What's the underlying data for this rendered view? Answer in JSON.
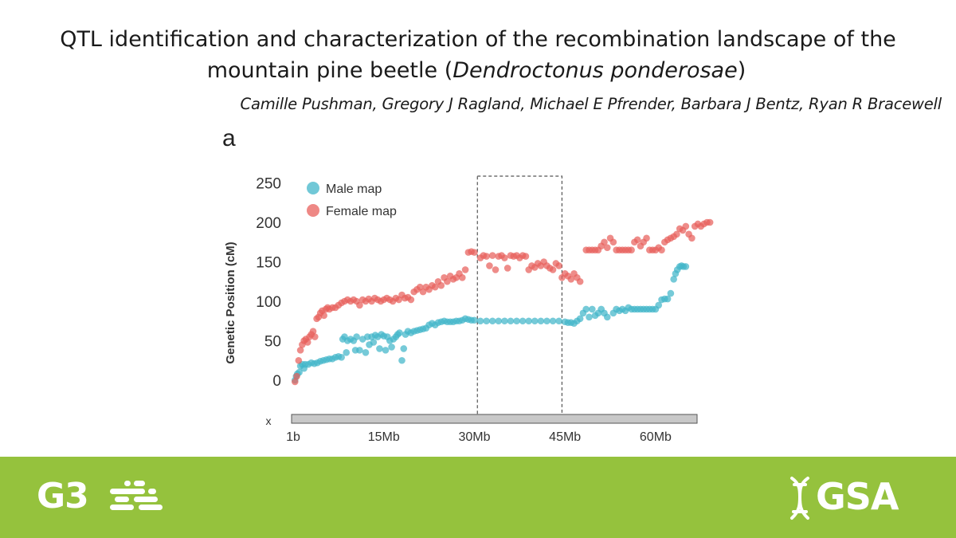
{
  "header": {
    "title_pre": "QTL identification and characterization of the recombination landscape of the",
    "title_line2_pre": "mountain pine beetle (",
    "title_italic": "Dendroctonus ponderosae",
    "title_line2_post": ")",
    "authors": "Camille Pushman, Gregory J Ragland, Michael E Pfrender, Barbara J Bentz, Ryan R Bracewell"
  },
  "footer": {
    "left_logo": "G3",
    "right_logo": "GSA",
    "icons": [
      "g3-dna-icon",
      "gsa-dna-icon"
    ],
    "color": "#95c23d"
  },
  "chart_data": {
    "type": "scatter",
    "panel_label": "a",
    "ylabel": "Genetic Position (cM)",
    "xlabel": "",
    "ylim": [
      -10,
      265
    ],
    "xlim": [
      0,
      67
    ],
    "yticks": [
      0,
      50,
      100,
      150,
      200,
      250
    ],
    "xticks": [
      {
        "v": 0,
        "label": "1b"
      },
      {
        "v": 15,
        "label": "15Mb"
      },
      {
        "v": 30,
        "label": "30Mb"
      },
      {
        "v": 45,
        "label": "45Mb"
      },
      {
        "v": 60,
        "label": "60Mb"
      }
    ],
    "chromosome_label": "x",
    "grid": false,
    "legend": "top-left",
    "highlight_region": [
      30.5,
      44.5
    ],
    "series": [
      {
        "name": "Male map",
        "color": "#41b6c9",
        "points": [
          [
            0.3,
            0
          ],
          [
            0.5,
            5
          ],
          [
            0.7,
            8
          ],
          [
            1,
            10
          ],
          [
            1.2,
            18
          ],
          [
            1.5,
            20
          ],
          [
            1.8,
            15
          ],
          [
            2,
            20
          ],
          [
            2.5,
            20
          ],
          [
            3,
            22
          ],
          [
            3.5,
            21
          ],
          [
            4,
            22
          ],
          [
            4.5,
            24
          ],
          [
            5,
            25
          ],
          [
            5.5,
            26
          ],
          [
            6,
            27
          ],
          [
            6.5,
            27
          ],
          [
            7,
            29
          ],
          [
            7.5,
            30
          ],
          [
            8,
            29
          ],
          [
            8.2,
            52
          ],
          [
            8.5,
            55
          ],
          [
            8.8,
            35
          ],
          [
            9,
            50
          ],
          [
            9.5,
            52
          ],
          [
            10,
            50
          ],
          [
            10.3,
            38
          ],
          [
            10.5,
            55
          ],
          [
            11,
            38
          ],
          [
            11.5,
            52
          ],
          [
            12,
            35
          ],
          [
            12.3,
            55
          ],
          [
            12.6,
            45
          ],
          [
            13,
            55
          ],
          [
            13.3,
            48
          ],
          [
            13.6,
            57
          ],
          [
            14,
            55
          ],
          [
            14.3,
            40
          ],
          [
            14.6,
            58
          ],
          [
            15,
            56
          ],
          [
            15.3,
            38
          ],
          [
            15.6,
            55
          ],
          [
            16,
            50
          ],
          [
            16.3,
            42
          ],
          [
            16.6,
            52
          ],
          [
            17,
            55
          ],
          [
            17.3,
            58
          ],
          [
            17.6,
            60
          ],
          [
            18,
            25
          ],
          [
            18.3,
            40
          ],
          [
            18.6,
            58
          ],
          [
            19,
            62
          ],
          [
            19.5,
            60
          ],
          [
            20,
            62
          ],
          [
            20.5,
            63
          ],
          [
            21,
            64
          ],
          [
            21.5,
            65
          ],
          [
            22,
            66
          ],
          [
            22.5,
            70
          ],
          [
            23,
            72
          ],
          [
            23.5,
            70
          ],
          [
            24,
            73
          ],
          [
            24.5,
            74
          ],
          [
            25,
            75
          ],
          [
            25.5,
            74
          ],
          [
            26,
            74
          ],
          [
            26.5,
            74
          ],
          [
            27,
            75
          ],
          [
            27.5,
            75
          ],
          [
            28,
            76
          ],
          [
            28.5,
            78
          ],
          [
            29,
            77
          ],
          [
            29.5,
            76
          ],
          [
            30,
            76
          ],
          [
            31,
            75
          ],
          [
            32,
            75
          ],
          [
            33,
            75
          ],
          [
            34,
            75
          ],
          [
            35,
            75
          ],
          [
            36,
            75
          ],
          [
            37,
            75
          ],
          [
            38,
            75
          ],
          [
            39,
            75
          ],
          [
            40,
            75
          ],
          [
            41,
            75
          ],
          [
            42,
            75
          ],
          [
            43,
            75
          ],
          [
            44,
            75
          ],
          [
            45,
            74
          ],
          [
            45.5,
            73
          ],
          [
            46,
            73
          ],
          [
            46.5,
            72
          ],
          [
            47,
            75
          ],
          [
            47.5,
            78
          ],
          [
            48,
            85
          ],
          [
            48.5,
            90
          ],
          [
            49,
            80
          ],
          [
            49.5,
            90
          ],
          [
            50,
            82
          ],
          [
            50.5,
            85
          ],
          [
            51,
            90
          ],
          [
            51.5,
            85
          ],
          [
            52,
            80
          ],
          [
            53,
            85
          ],
          [
            53.5,
            90
          ],
          [
            54,
            88
          ],
          [
            54.5,
            90
          ],
          [
            55,
            88
          ],
          [
            55.5,
            92
          ],
          [
            56,
            90
          ],
          [
            56.5,
            90
          ],
          [
            57,
            90
          ],
          [
            57.5,
            90
          ],
          [
            58,
            90
          ],
          [
            58.5,
            90
          ],
          [
            59,
            90
          ],
          [
            59.5,
            90
          ],
          [
            60,
            90
          ],
          [
            60.5,
            95
          ],
          [
            61,
            102
          ],
          [
            61.5,
            103
          ],
          [
            62,
            103
          ],
          [
            62.5,
            110
          ],
          [
            63,
            128
          ],
          [
            63.3,
            135
          ],
          [
            63.6,
            140
          ],
          [
            64,
            144
          ],
          [
            64.3,
            145
          ],
          [
            64.6,
            144
          ],
          [
            65,
            144
          ]
        ]
      },
      {
        "name": "Female map",
        "color": "#e8605c",
        "points": [
          [
            0.3,
            -2
          ],
          [
            0.6,
            5
          ],
          [
            0.9,
            25
          ],
          [
            1.2,
            38
          ],
          [
            1.5,
            45
          ],
          [
            1.8,
            50
          ],
          [
            2.1,
            52
          ],
          [
            2.4,
            48
          ],
          [
            2.7,
            55
          ],
          [
            3,
            58
          ],
          [
            3.3,
            62
          ],
          [
            3.6,
            55
          ],
          [
            3.9,
            78
          ],
          [
            4.2,
            80
          ],
          [
            4.5,
            85
          ],
          [
            4.8,
            88
          ],
          [
            5.1,
            82
          ],
          [
            5.4,
            90
          ],
          [
            5.7,
            92
          ],
          [
            6,
            90
          ],
          [
            6.5,
            92
          ],
          [
            7,
            92
          ],
          [
            7.5,
            95
          ],
          [
            8,
            98
          ],
          [
            8.5,
            100
          ],
          [
            9,
            102
          ],
          [
            9.5,
            100
          ],
          [
            10,
            102
          ],
          [
            10.5,
            100
          ],
          [
            11,
            95
          ],
          [
            11.5,
            102
          ],
          [
            12,
            100
          ],
          [
            12.5,
            103
          ],
          [
            13,
            100
          ],
          [
            13.5,
            104
          ],
          [
            14,
            102
          ],
          [
            14.5,
            100
          ],
          [
            15,
            102
          ],
          [
            15.5,
            104
          ],
          [
            16,
            102
          ],
          [
            16.5,
            100
          ],
          [
            17,
            104
          ],
          [
            17.5,
            102
          ],
          [
            18,
            108
          ],
          [
            18.5,
            104
          ],
          [
            19,
            105
          ],
          [
            19.5,
            102
          ],
          [
            20,
            112
          ],
          [
            20.5,
            115
          ],
          [
            21,
            118
          ],
          [
            21.5,
            112
          ],
          [
            22,
            118
          ],
          [
            22.5,
            115
          ],
          [
            23,
            120
          ],
          [
            23.5,
            118
          ],
          [
            24,
            125
          ],
          [
            24.5,
            120
          ],
          [
            25,
            130
          ],
          [
            25.5,
            125
          ],
          [
            26,
            132
          ],
          [
            26.5,
            128
          ],
          [
            27,
            130
          ],
          [
            27.5,
            135
          ],
          [
            28,
            130
          ],
          [
            28.5,
            140
          ],
          [
            29,
            162
          ],
          [
            29.5,
            163
          ],
          [
            30,
            162
          ],
          [
            31,
            155
          ],
          [
            31.5,
            158
          ],
          [
            32,
            157
          ],
          [
            32.5,
            145
          ],
          [
            33,
            158
          ],
          [
            33.5,
            140
          ],
          [
            34,
            157
          ],
          [
            34.5,
            158
          ],
          [
            35,
            155
          ],
          [
            35.5,
            142
          ],
          [
            36,
            158
          ],
          [
            36.5,
            157
          ],
          [
            37,
            158
          ],
          [
            37.5,
            155
          ],
          [
            38,
            158
          ],
          [
            38.5,
            157
          ],
          [
            39,
            140
          ],
          [
            39.5,
            145
          ],
          [
            40,
            143
          ],
          [
            40.5,
            148
          ],
          [
            41,
            145
          ],
          [
            41.5,
            150
          ],
          [
            42,
            145
          ],
          [
            42.5,
            142
          ],
          [
            43,
            140
          ],
          [
            43.5,
            148
          ],
          [
            44,
            145
          ],
          [
            44.5,
            130
          ],
          [
            45,
            135
          ],
          [
            45.5,
            132
          ],
          [
            46,
            128
          ],
          [
            46.5,
            135
          ],
          [
            47,
            130
          ],
          [
            47.5,
            125
          ],
          [
            48.5,
            165
          ],
          [
            49,
            165
          ],
          [
            49.5,
            165
          ],
          [
            50,
            165
          ],
          [
            50.5,
            165
          ],
          [
            51,
            170
          ],
          [
            51.5,
            175
          ],
          [
            52,
            168
          ],
          [
            52.5,
            180
          ],
          [
            53,
            175
          ],
          [
            53.5,
            165
          ],
          [
            54,
            165
          ],
          [
            54.5,
            165
          ],
          [
            55,
            165
          ],
          [
            55.5,
            165
          ],
          [
            56,
            165
          ],
          [
            56.5,
            175
          ],
          [
            57,
            178
          ],
          [
            57.5,
            170
          ],
          [
            58,
            175
          ],
          [
            58.5,
            180
          ],
          [
            59,
            165
          ],
          [
            59.5,
            165
          ],
          [
            60,
            165
          ],
          [
            60.5,
            168
          ],
          [
            61,
            165
          ],
          [
            61.5,
            175
          ],
          [
            62,
            178
          ],
          [
            62.5,
            180
          ],
          [
            63,
            182
          ],
          [
            63.5,
            185
          ],
          [
            64,
            192
          ],
          [
            64.5,
            190
          ],
          [
            65,
            195
          ],
          [
            65.5,
            185
          ],
          [
            66,
            180
          ],
          [
            66.5,
            195
          ],
          [
            67,
            198
          ],
          [
            67.5,
            195
          ],
          [
            68,
            198
          ],
          [
            68.5,
            200
          ],
          [
            69,
            200
          ]
        ]
      }
    ]
  }
}
